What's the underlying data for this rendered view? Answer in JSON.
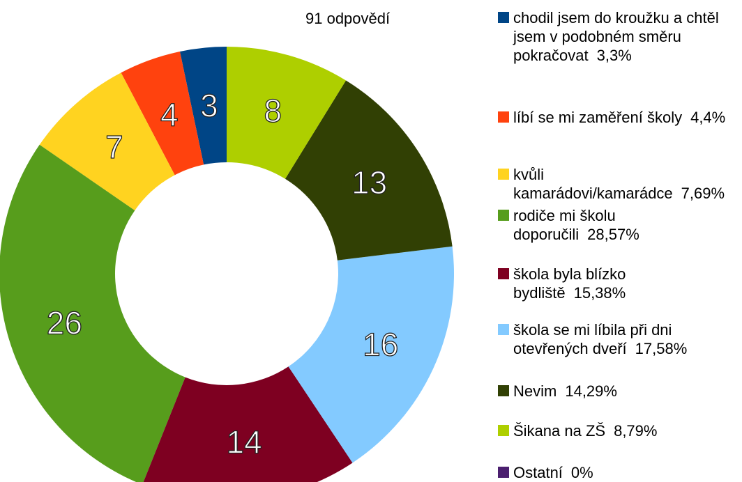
{
  "chart_data": {
    "type": "donut",
    "subtitle": "91 odpovědí",
    "categories": [
      "chodil jsem do kroužku a chtěl jsem v podobném směru pokračovat",
      "líbí se mi zaměření školy",
      "kvůli kamarádovi/kamarádce",
      "rodiče mi školu doporučili",
      "škola byla blízko bydliště",
      "škola se mi líbila při dni otevřených dveří",
      "Nevim",
      "Šikana na ZŠ",
      "Ostatní"
    ],
    "values": [
      3,
      4,
      7,
      26,
      14,
      16,
      13,
      8,
      0
    ],
    "percent_labels": [
      "3,3%",
      "4,4%",
      "7,69%",
      "28,57%",
      "15,38%",
      "17,58%",
      "14,29%",
      "8,79%",
      "0%"
    ],
    "colors": [
      "#004586",
      "#ff420e",
      "#ffd320",
      "#579d1c",
      "#7e0021",
      "#83caff",
      "#314004",
      "#aecf00",
      "#4b1f6f"
    ],
    "legend": "right"
  }
}
